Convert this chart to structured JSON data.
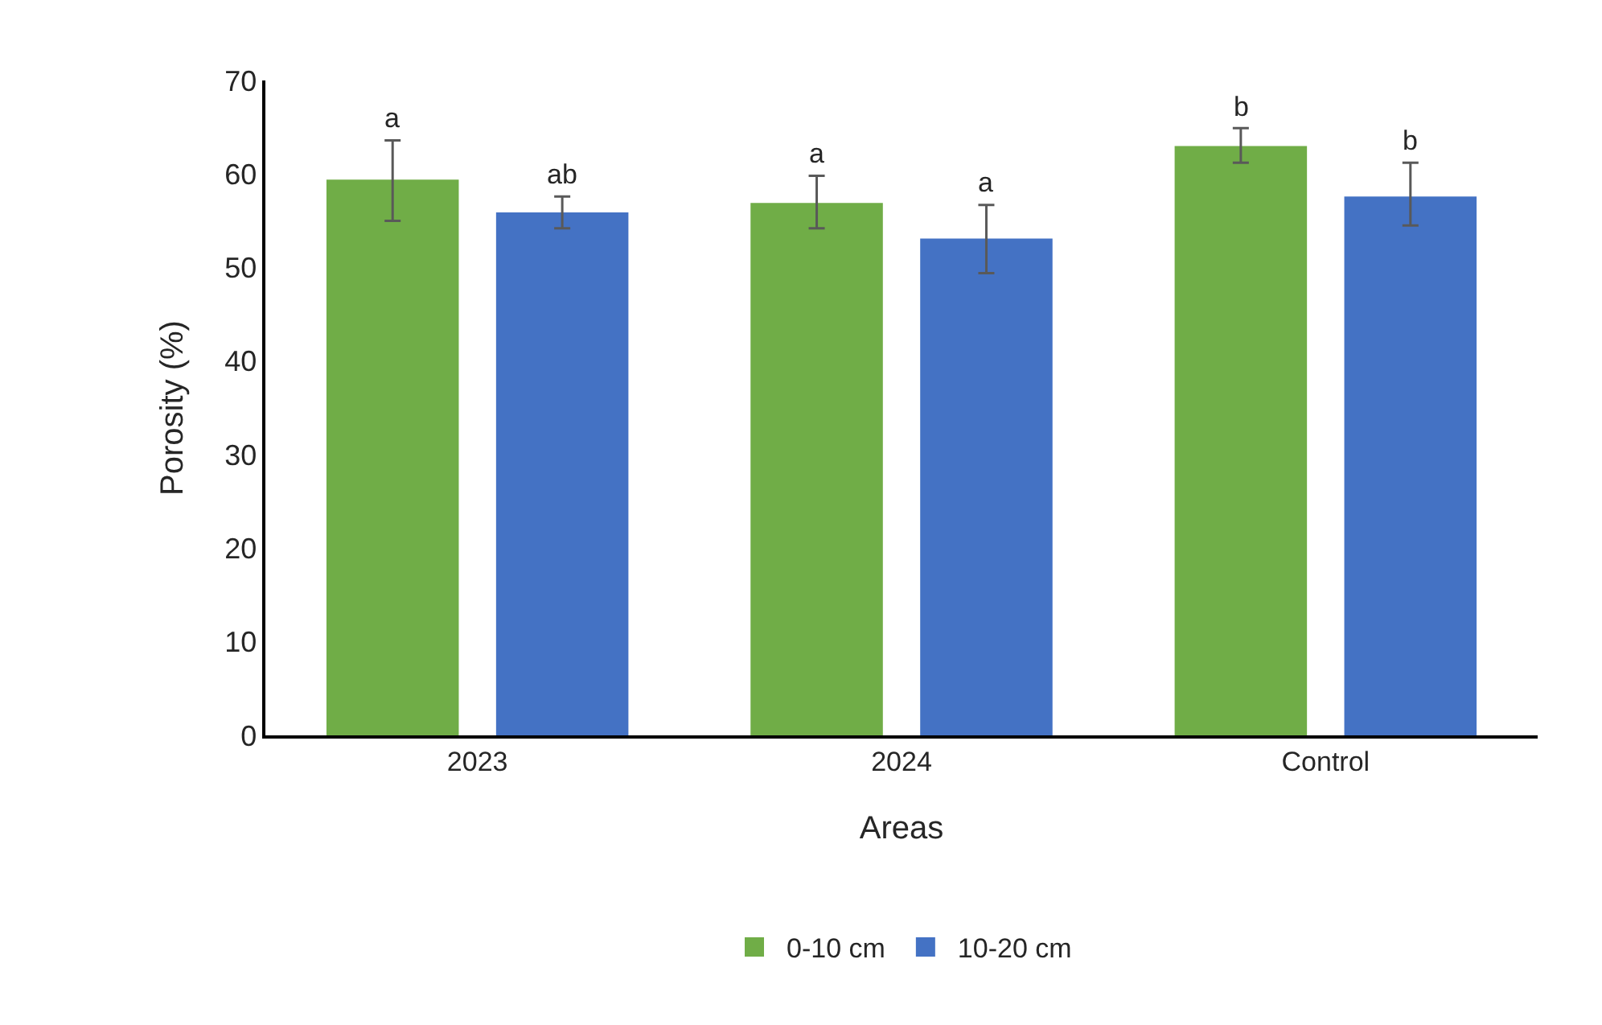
{
  "chart_data": {
    "type": "bar",
    "xlabel": "Areas",
    "ylabel": "Porosity (%)",
    "categories": [
      "2023",
      "2024",
      "Control"
    ],
    "series": [
      {
        "name": "0-10 cm",
        "color": "#70ad47",
        "values": [
          59.4,
          56.9,
          63.0
        ],
        "errors": [
          [
            55.0,
            63.6
          ],
          [
            54.2,
            59.8
          ],
          [
            61.2,
            64.9
          ]
        ]
      },
      {
        "name": "10-20 cm",
        "color": "#4472c4",
        "values": [
          55.9,
          53.1,
          57.6
        ],
        "errors": [
          [
            54.2,
            57.6
          ],
          [
            49.4,
            56.7
          ],
          [
            54.5,
            61.2
          ]
        ]
      }
    ],
    "ylim": [
      0,
      70
    ],
    "yticks": [
      0,
      10,
      20,
      30,
      40,
      50,
      60,
      70
    ],
    "grid": false,
    "legend": "bottom",
    "annotations": [
      "a",
      "ab",
      "a",
      "a",
      "b",
      "b"
    ]
  }
}
